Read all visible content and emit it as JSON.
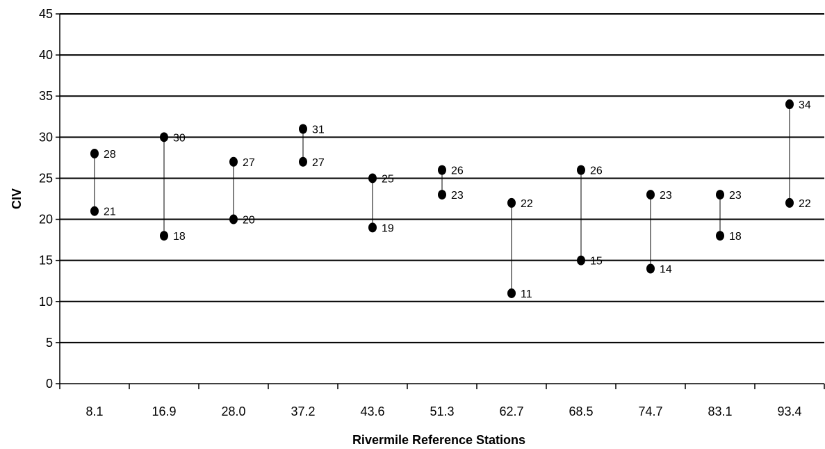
{
  "chart_data": {
    "type": "scatter",
    "title": "",
    "xlabel": "Rivermile Reference Stations",
    "ylabel": "CIV",
    "ylim": [
      0,
      45
    ],
    "yticks": [
      0,
      5,
      10,
      15,
      20,
      25,
      30,
      35,
      40,
      45
    ],
    "grid": true,
    "legend": "none",
    "categories": [
      "8.1",
      "16.9",
      "28.0",
      "37.2",
      "43.6",
      "51.3",
      "62.7",
      "68.5",
      "74.7",
      "83.1",
      "93.4"
    ],
    "high": [
      28,
      30,
      27,
      31,
      25,
      26,
      22,
      26,
      23,
      23,
      34
    ],
    "low": [
      21,
      18,
      20,
      27,
      19,
      23,
      11,
      15,
      14,
      18,
      22
    ],
    "colors": {
      "marker": "#000000",
      "grid": "#000000",
      "axis": "#000000"
    }
  }
}
